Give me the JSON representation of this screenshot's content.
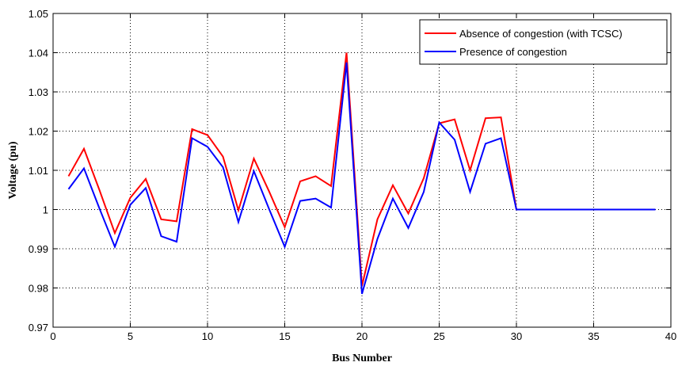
{
  "chart_data": {
    "type": "line",
    "xlabel": "Bus Number",
    "ylabel": "Voltage (pu)",
    "xlim": [
      0,
      40
    ],
    "ylim": [
      0.97,
      1.05
    ],
    "xticks": [
      0,
      5,
      10,
      15,
      20,
      25,
      30,
      35,
      40
    ],
    "yticks": [
      0.97,
      0.98,
      0.99,
      1,
      1.01,
      1.02,
      1.03,
      1.04,
      1.05
    ],
    "xtick_labels": [
      "0",
      "5",
      "10",
      "15",
      "20",
      "25",
      "30",
      "35",
      "40"
    ],
    "ytick_labels": [
      "0.97",
      "0.98",
      "0.99",
      "1",
      "1.01",
      "1.02",
      "1.03",
      "1.04",
      "1.05"
    ],
    "grid": true,
    "legend_position": "top-right",
    "x": [
      1,
      2,
      3,
      4,
      5,
      6,
      7,
      8,
      9,
      10,
      11,
      12,
      13,
      14,
      15,
      16,
      17,
      18,
      19,
      20,
      21,
      22,
      23,
      24,
      25,
      26,
      27,
      28,
      29,
      30,
      31,
      32,
      33,
      34,
      35,
      36,
      37,
      38,
      39
    ],
    "series": [
      {
        "name": "Absence of congestion (with TCSC)",
        "color": "#ff0000",
        "values": [
          1.0085,
          1.0155,
          1.005,
          0.994,
          1.003,
          1.0078,
          0.9975,
          0.997,
          1.0205,
          1.019,
          1.0135,
          0.9998,
          1.013,
          1.0045,
          0.9955,
          1.0072,
          1.0085,
          1.006,
          1.04,
          0.9805,
          0.9975,
          1.0062,
          0.999,
          1.008,
          1.022,
          1.023,
          1.01,
          1.0233,
          1.0235,
          1.0,
          1.0,
          1.0,
          1.0,
          1.0,
          1.0,
          1.0,
          1.0,
          1.0,
          1.0
        ]
      },
      {
        "name": "Presence of congestion",
        "color": "#0000ff",
        "values": [
          1.0052,
          1.0105,
          1.0003,
          0.9905,
          1.0012,
          1.0055,
          0.9932,
          0.9918,
          1.0182,
          1.016,
          1.0108,
          0.9968,
          1.0098,
          1.0,
          0.9905,
          1.0022,
          1.0028,
          1.0005,
          1.0375,
          0.9785,
          0.9925,
          1.0028,
          0.9953,
          1.0045,
          1.0222,
          1.0178,
          1.0045,
          1.0168,
          1.0182,
          1.0,
          1.0,
          1.0,
          1.0,
          1.0,
          1.0,
          1.0,
          1.0,
          1.0,
          1.0
        ]
      }
    ]
  }
}
